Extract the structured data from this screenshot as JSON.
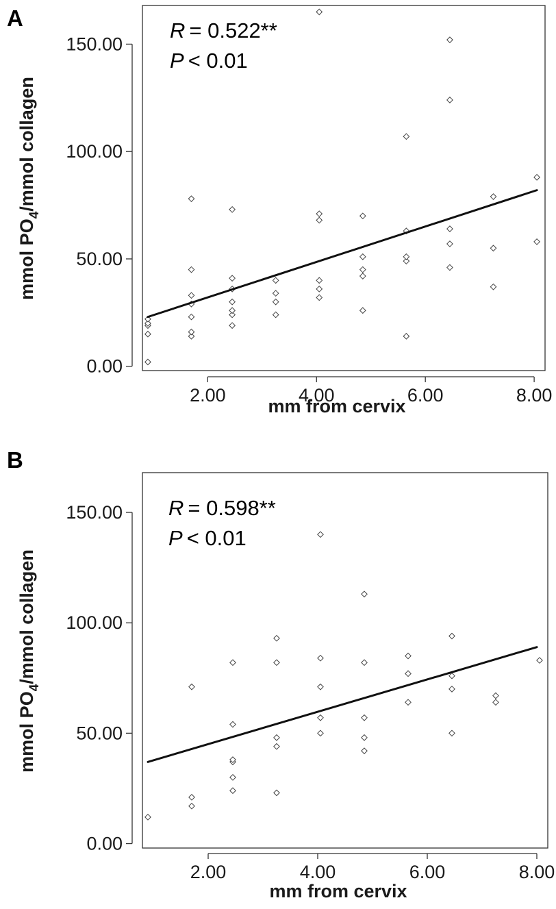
{
  "chart_data": [
    {
      "type": "scatter",
      "panel_label": "A",
      "title": "",
      "xlabel": "mm from cervix",
      "ylabel_parts": [
        "mmol PO",
        "4",
        "/mmol collagen"
      ],
      "xlim": [
        0.8,
        8.2
      ],
      "ylim": [
        -2,
        168
      ],
      "xticks": [
        2,
        4,
        6,
        8
      ],
      "xtick_labels": [
        "2.00",
        "4.00",
        "6.00",
        "8.00"
      ],
      "yticks": [
        0,
        50,
        100,
        150
      ],
      "ytick_labels": [
        "0.00",
        "50.00",
        "100.00",
        "150.00"
      ],
      "annotation": {
        "r_symbol": "R",
        "r_value": "= 0.522**",
        "p_symbol": "P",
        "p_value": "< 0.01"
      },
      "fit_line": {
        "x": [
          0.9,
          8.05
        ],
        "y": [
          23,
          82
        ]
      },
      "points": [
        [
          0.9,
          2
        ],
        [
          0.9,
          15
        ],
        [
          0.9,
          19
        ],
        [
          0.9,
          20
        ],
        [
          0.9,
          22
        ],
        [
          1.7,
          14
        ],
        [
          1.7,
          16
        ],
        [
          1.7,
          23
        ],
        [
          1.7,
          29
        ],
        [
          1.7,
          33
        ],
        [
          1.7,
          45
        ],
        [
          1.7,
          78
        ],
        [
          2.45,
          19
        ],
        [
          2.45,
          24
        ],
        [
          2.45,
          26
        ],
        [
          2.45,
          30
        ],
        [
          2.45,
          36
        ],
        [
          2.45,
          41
        ],
        [
          2.45,
          73
        ],
        [
          3.25,
          24
        ],
        [
          3.25,
          30
        ],
        [
          3.25,
          34
        ],
        [
          3.25,
          40
        ],
        [
          4.05,
          32
        ],
        [
          4.05,
          36
        ],
        [
          4.05,
          40
        ],
        [
          4.05,
          68
        ],
        [
          4.05,
          71
        ],
        [
          4.05,
          165
        ],
        [
          4.85,
          26
        ],
        [
          4.85,
          42
        ],
        [
          4.85,
          45
        ],
        [
          4.85,
          51
        ],
        [
          4.85,
          70
        ],
        [
          5.65,
          14
        ],
        [
          5.65,
          49
        ],
        [
          5.65,
          51
        ],
        [
          5.65,
          63
        ],
        [
          5.65,
          107
        ],
        [
          6.45,
          46
        ],
        [
          6.45,
          57
        ],
        [
          6.45,
          64
        ],
        [
          6.45,
          124
        ],
        [
          6.45,
          152
        ],
        [
          7.25,
          37
        ],
        [
          7.25,
          55
        ],
        [
          7.25,
          79
        ],
        [
          8.05,
          58
        ],
        [
          8.05,
          88
        ]
      ]
    },
    {
      "type": "scatter",
      "panel_label": "B",
      "title": "",
      "xlabel": "mm from cervix",
      "ylabel_parts": [
        "mmol PO",
        "4",
        "/mmol collagen"
      ],
      "xlim": [
        0.8,
        8.2
      ],
      "ylim": [
        -2,
        168
      ],
      "xticks": [
        2,
        4,
        6,
        8
      ],
      "xtick_labels": [
        "2.00",
        "4.00",
        "6.00",
        "8.00"
      ],
      "yticks": [
        0,
        50,
        100,
        150
      ],
      "ytick_labels": [
        "0.00",
        "50.00",
        "100.00",
        "150.00"
      ],
      "annotation": {
        "r_symbol": "R",
        "r_value": "= 0.598**",
        "p_symbol": "P",
        "p_value": "< 0.01"
      },
      "fit_line": {
        "x": [
          0.9,
          8.0
        ],
        "y": [
          37,
          89
        ]
      },
      "points": [
        [
          0.9,
          12
        ],
        [
          1.7,
          17
        ],
        [
          1.7,
          21
        ],
        [
          1.7,
          71
        ],
        [
          2.45,
          24
        ],
        [
          2.45,
          30
        ],
        [
          2.45,
          37
        ],
        [
          2.45,
          38
        ],
        [
          2.45,
          54
        ],
        [
          2.45,
          82
        ],
        [
          3.25,
          23
        ],
        [
          3.25,
          44
        ],
        [
          3.25,
          48
        ],
        [
          3.25,
          82
        ],
        [
          3.25,
          93
        ],
        [
          4.05,
          50
        ],
        [
          4.05,
          57
        ],
        [
          4.05,
          71
        ],
        [
          4.05,
          84
        ],
        [
          4.05,
          140
        ],
        [
          4.85,
          42
        ],
        [
          4.85,
          48
        ],
        [
          4.85,
          57
        ],
        [
          4.85,
          82
        ],
        [
          4.85,
          113
        ],
        [
          5.65,
          64
        ],
        [
          5.65,
          77
        ],
        [
          5.65,
          85
        ],
        [
          6.45,
          50
        ],
        [
          6.45,
          70
        ],
        [
          6.45,
          76
        ],
        [
          6.45,
          94
        ],
        [
          7.25,
          64
        ],
        [
          7.25,
          67
        ],
        [
          8.05,
          83
        ]
      ]
    }
  ]
}
